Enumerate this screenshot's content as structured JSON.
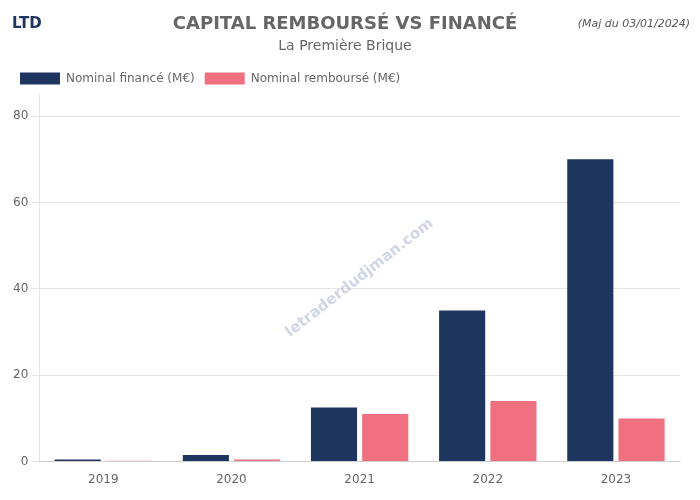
{
  "chart_data": {
    "type": "bar",
    "title": "CAPITAL REMBOURSÉ VS FINANCÉ",
    "subtitle": "La Première Brique",
    "annotations": [
      "(Maj du 03/01/2024)",
      "LTD",
      "letraderdudjman.com"
    ],
    "categories": [
      "2019",
      "2020",
      "2021",
      "2022",
      "2023"
    ],
    "series": [
      {
        "name": "Nominal financé (M€)",
        "color": "#1e3560",
        "values": [
          0.5,
          1.5,
          12.5,
          35.0,
          70.0
        ]
      },
      {
        "name": "Nominal remboursé (M€)",
        "color": "#f07080",
        "values": [
          0.2,
          0.5,
          11.0,
          14.0,
          10.0
        ]
      }
    ],
    "ylim": [
      0,
      85
    ],
    "yticks": [
      0,
      20,
      40,
      60,
      80
    ],
    "grid": true,
    "legend": "upper left"
  }
}
